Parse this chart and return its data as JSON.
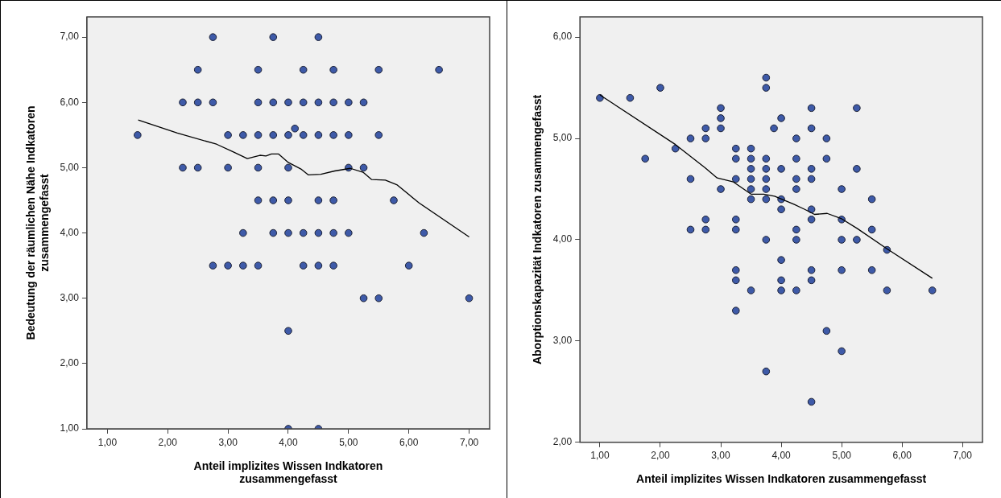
{
  "chart_data": [
    {
      "type": "scatter",
      "xlabel": "Anteil implizites Wissen Indkatoren zusammengefasst",
      "ylabel": "Bedeutung der räumlichen Nähe Indkatoren zusammengefasst",
      "marker": "circle",
      "xlim": [
        0.66,
        7.34
      ],
      "ylim": [
        1,
        7.31
      ],
      "xticks": [
        {
          "value": 1,
          "label": "1,00"
        },
        {
          "value": 2,
          "label": "2,00"
        },
        {
          "value": 3,
          "label": "3,00"
        },
        {
          "value": 4,
          "label": "4,00"
        },
        {
          "value": 5,
          "label": "5,00"
        },
        {
          "value": 6,
          "label": "6,00"
        },
        {
          "value": 7,
          "label": "7,00"
        }
      ],
      "yticks": [
        {
          "value": 1,
          "label": "1,00"
        },
        {
          "value": 2,
          "label": "2,00"
        },
        {
          "value": 3,
          "label": "3,00"
        },
        {
          "value": 4,
          "label": "4,00"
        },
        {
          "value": 5,
          "label": "5,00"
        },
        {
          "value": 6,
          "label": "6,00"
        },
        {
          "value": 7,
          "label": "7,00"
        }
      ],
      "series": [
        {
          "type": "scatter",
          "color": "#3e5aa8",
          "x": [
            2.75,
            3.75,
            4.5,
            2.5,
            3.5,
            4.25,
            4.75,
            5.5,
            6.5,
            2.25,
            2.5,
            2.75,
            3.5,
            3.75,
            4.0,
            4.25,
            4.5,
            4.75,
            5.0,
            5.25,
            4.11,
            1.5,
            3.0,
            3.25,
            3.5,
            3.75,
            4.0,
            4.25,
            4.5,
            4.75,
            5.0,
            5.5,
            2.25,
            2.5,
            3.0,
            3.5,
            4.0,
            5.0,
            5.25,
            3.5,
            3.75,
            4.0,
            4.5,
            4.75,
            5.75,
            3.25,
            3.75,
            4.0,
            4.25,
            4.5,
            4.75,
            5.0,
            6.25,
            2.75,
            3.0,
            3.25,
            3.5,
            4.25,
            4.5,
            4.75,
            6.0,
            5.25,
            5.5,
            7.0,
            4.0,
            4.0,
            4.5
          ],
          "values": [
            7,
            7,
            7,
            6.5,
            6.5,
            6.5,
            6.5,
            6.5,
            6.5,
            6,
            6,
            6,
            6,
            6,
            6,
            6,
            6,
            6,
            6,
            6,
            5.6,
            5.5,
            5.5,
            5.5,
            5.5,
            5.5,
            5.5,
            5.5,
            5.5,
            5.5,
            5.5,
            5.5,
            5,
            5,
            5,
            5,
            5,
            5,
            5,
            4.5,
            4.5,
            4.5,
            4.5,
            4.5,
            4.5,
            4,
            4,
            4,
            4,
            4,
            4,
            4,
            4,
            3.5,
            3.5,
            3.5,
            3.5,
            3.5,
            3.5,
            3.5,
            3.5,
            3,
            3,
            3,
            2.5,
            1,
            1
          ]
        },
        {
          "type": "line",
          "color": "#000000",
          "marker": "none",
          "x": [
            1.51,
            2.16,
            2.81,
            3.09,
            3.32,
            3.53,
            3.63,
            3.72,
            3.84,
            4.0,
            4.21,
            4.33,
            4.54,
            4.77,
            5.03,
            5.24,
            5.38,
            5.61,
            5.8,
            6.17,
            7.0
          ],
          "values": [
            5.73,
            5.53,
            5.36,
            5.24,
            5.14,
            5.19,
            5.18,
            5.21,
            5.21,
            5.08,
            4.98,
            4.89,
            4.9,
            4.95,
            4.99,
            4.93,
            4.82,
            4.81,
            4.74,
            4.46,
            3.94
          ]
        }
      ]
    },
    {
      "type": "scatter",
      "xlabel": "Anteil implizites Wissen Indkatoren zusammengefasst",
      "ylabel": "Aborptionskapazität Indkatoren zusammengefasst",
      "marker": "circle",
      "xlim": [
        0.67,
        7.33
      ],
      "ylim": [
        2,
        6.2
      ],
      "xticks": [
        {
          "value": 1,
          "label": "1,00"
        },
        {
          "value": 2,
          "label": "2,00"
        },
        {
          "value": 3,
          "label": "3,00"
        },
        {
          "value": 4,
          "label": "4,00"
        },
        {
          "value": 5,
          "label": "5,00"
        },
        {
          "value": 6,
          "label": "6,00"
        },
        {
          "value": 7,
          "label": "7,00"
        }
      ],
      "yticks": [
        {
          "value": 2,
          "label": "2,00"
        },
        {
          "value": 3,
          "label": "3,00"
        },
        {
          "value": 4,
          "label": "4,00"
        },
        {
          "value": 5,
          "label": "5,00"
        },
        {
          "value": 6,
          "label": "6,00"
        }
      ],
      "series": [
        {
          "type": "scatter",
          "color": "#3e5aa8",
          "x": [
            1.0,
            1.5,
            2.0,
            1.75,
            2.25,
            2.5,
            2.5,
            2.5,
            2.75,
            2.75,
            2.75,
            2.75,
            3.0,
            3.0,
            3.0,
            3.0,
            3.25,
            3.25,
            3.25,
            3.25,
            3.25,
            3.25,
            3.25,
            3.25,
            3.5,
            3.5,
            3.5,
            3.5,
            3.5,
            3.5,
            3.5,
            3.75,
            3.75,
            3.75,
            3.75,
            3.75,
            3.75,
            3.75,
            3.75,
            3.75,
            3.88,
            4.0,
            4.0,
            4.0,
            4.0,
            4.0,
            4.0,
            4.0,
            4.25,
            4.25,
            4.25,
            4.25,
            4.25,
            4.25,
            4.25,
            4.5,
            4.5,
            4.5,
            4.5,
            4.5,
            4.5,
            4.5,
            4.5,
            4.5,
            4.75,
            4.75,
            4.75,
            5.0,
            5.0,
            5.0,
            5.0,
            5.0,
            5.25,
            5.25,
            5.25,
            5.5,
            5.5,
            5.5,
            5.75,
            5.75,
            6.5
          ],
          "values": [
            5.4,
            5.4,
            5.5,
            4.8,
            4.9,
            5.0,
            4.6,
            4.1,
            5.1,
            5.0,
            4.2,
            4.1,
            5.3,
            5.2,
            5.1,
            4.5,
            4.9,
            4.8,
            4.6,
            4.2,
            4.1,
            3.7,
            3.6,
            3.3,
            4.9,
            4.8,
            4.7,
            4.6,
            4.5,
            4.4,
            3.5,
            5.6,
            5.5,
            4.8,
            4.7,
            4.6,
            4.5,
            4.4,
            4.0,
            2.7,
            5.1,
            5.2,
            4.7,
            4.4,
            4.3,
            3.8,
            3.6,
            3.5,
            5.0,
            4.8,
            4.6,
            4.5,
            4.1,
            4.0,
            3.5,
            5.3,
            5.1,
            4.7,
            4.6,
            4.3,
            4.2,
            3.7,
            3.6,
            2.4,
            5.0,
            4.8,
            3.1,
            4.5,
            4.2,
            4.0,
            3.7,
            2.9,
            5.3,
            4.7,
            4.0,
            4.4,
            4.1,
            3.7,
            3.9,
            3.5,
            3.5
          ]
        },
        {
          "type": "line",
          "color": "#000000",
          "marker": "none",
          "x": [
            1.0,
            2.25,
            2.74,
            2.94,
            3.21,
            3.5,
            3.71,
            3.89,
            4.21,
            4.39,
            4.55,
            4.76,
            4.99,
            5.26,
            5.75,
            6.5
          ],
          "values": [
            5.43,
            4.94,
            4.71,
            4.61,
            4.57,
            4.45,
            4.45,
            4.43,
            4.35,
            4.3,
            4.25,
            4.26,
            4.21,
            4.11,
            3.91,
            3.62
          ]
        }
      ]
    }
  ]
}
